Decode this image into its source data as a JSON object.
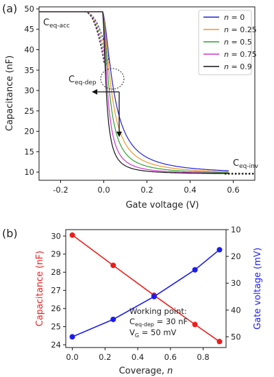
{
  "chart_data": [
    {
      "panel_label": "(a)",
      "type": "line",
      "xlabel": "Gate voltage (V)",
      "ylabel": "Capacitance (nF)",
      "xlim": [
        -0.3,
        0.7
      ],
      "ylim": [
        8,
        50.5
      ],
      "x_ticks": [
        "-0.2",
        "0.0",
        "0.2",
        "0.4",
        "0.6"
      ],
      "x_tick_values": [
        -0.2,
        0.0,
        0.2,
        0.4,
        0.6
      ],
      "y_ticks": [
        "10",
        "15",
        "20",
        "25",
        "30",
        "35",
        "40",
        "45",
        "50"
      ],
      "y_tick_values": [
        10,
        15,
        20,
        25,
        30,
        35,
        40,
        45,
        50
      ],
      "legend_position": "top-right",
      "colors": [
        "#1f1fd6",
        "#f0932a",
        "#2ca02c",
        "#cc33cc",
        "#111111"
      ],
      "series": [
        {
          "name": "n = 0",
          "legend_n": "n",
          "legend_value": " = 0",
          "color": "#1f1fd6",
          "v_knee": 0.03,
          "v_shift": 0.045
        },
        {
          "name": "n = 0.25",
          "legend_n": "n",
          "legend_value": " = 0.25",
          "color": "#f0932a",
          "v_knee": 0.022,
          "v_shift": 0.034
        },
        {
          "name": "n = 0.5",
          "legend_n": "n",
          "legend_value": " = 0.5",
          "color": "#2ca02c",
          "v_knee": 0.015,
          "v_shift": 0.024
        },
        {
          "name": "n = 0.75",
          "legend_n": "n",
          "legend_value": " = 0.75",
          "color": "#cc33cc",
          "v_knee": 0.009,
          "v_shift": 0.015
        },
        {
          "name": "n = 0.9",
          "legend_n": "n",
          "legend_value": " = 0.9",
          "color": "#111111",
          "v_knee": 0.004,
          "v_shift": 0.009
        }
      ],
      "c_max": 49.3,
      "c_min": 9.5,
      "annotations": {
        "acc_main": "C",
        "acc_sub": "eq-acc",
        "dep_main": "C",
        "dep_sub": "eq-dep",
        "inv_main": "C",
        "inv_sub": "eq-inv"
      },
      "inv_dotted_x": [
        0.56,
        0.7
      ],
      "inv_dotted_y": 9.6,
      "working_point": {
        "x": 0.05,
        "y": 30
      }
    },
    {
      "panel_label": "(b)",
      "type": "line",
      "xlabel_main": "Coverage, ",
      "xlabel_var": "n",
      "xlim": [
        -0.04,
        0.94
      ],
      "x_ticks": [
        "0.0",
        "0.2",
        "0.4",
        "0.6",
        "0.8"
      ],
      "x_tick_values": [
        0.0,
        0.2,
        0.4,
        0.6,
        0.8
      ],
      "x": [
        0,
        0.25,
        0.5,
        0.75,
        0.9
      ],
      "left_axis": {
        "label": "Capacitance (nF)",
        "color": "#ee1c1c",
        "ylim": [
          23.85,
          30.35
        ],
        "ticks": [
          "24",
          "25",
          "26",
          "27",
          "28",
          "29",
          "30"
        ],
        "tick_values": [
          24,
          25,
          26,
          27,
          28,
          29,
          30
        ]
      },
      "right_axis": {
        "label": "Gate voltage (mV)",
        "color": "#1c1cee",
        "ylim_top_to_bottom": [
          10,
          54
        ],
        "ticks": [
          "10",
          "20",
          "30",
          "40",
          "50"
        ],
        "tick_values": [
          10,
          20,
          30,
          40,
          50
        ],
        "inverted": true
      },
      "series": [
        {
          "axis": "left",
          "color": "#ee1c1c",
          "values": [
            30.05,
            28.38,
            26.73,
            25.12,
            24.18
          ]
        },
        {
          "axis": "right",
          "color": "#1c1cee",
          "values": [
            50,
            43.5,
            35,
            25,
            17.5
          ]
        }
      ],
      "note": {
        "line1": "Working point:",
        "line2_main": "C",
        "line2_sub": "eq-dep",
        "line2_rest": " = 30 nF",
        "line3_main": "V",
        "line3_sub": "G",
        "line3_rest": " = 50 mV"
      }
    }
  ]
}
